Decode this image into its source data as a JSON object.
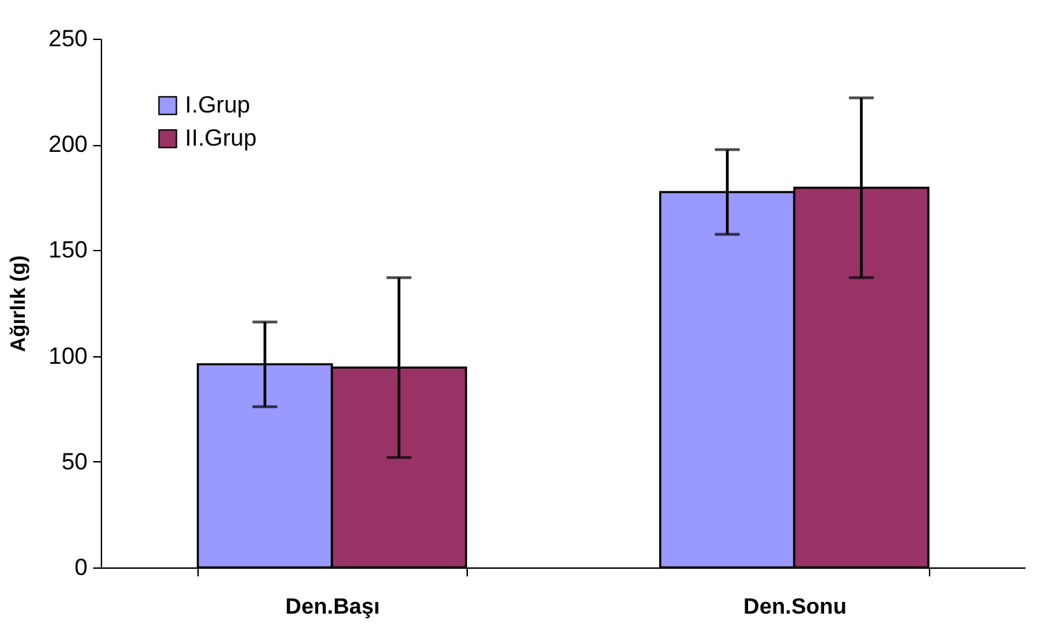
{
  "chart_data": {
    "type": "bar",
    "ylabel": "Ağırlık (g)",
    "categories": [
      "Den.Başı",
      "Den.Sonu"
    ],
    "series": [
      {
        "name": "I.Grup",
        "color": "#9999ff",
        "values": [
          96,
          177.5
        ],
        "errors": [
          20,
          20
        ]
      },
      {
        "name": "II.Grup",
        "color": "#993366",
        "values": [
          94.5,
          179.5
        ],
        "errors": [
          42.5,
          42.5
        ]
      }
    ],
    "ylim": [
      0,
      250
    ],
    "yticks": [
      0,
      50,
      100,
      150,
      200,
      250
    ],
    "grid": false,
    "legend": "top left"
  }
}
